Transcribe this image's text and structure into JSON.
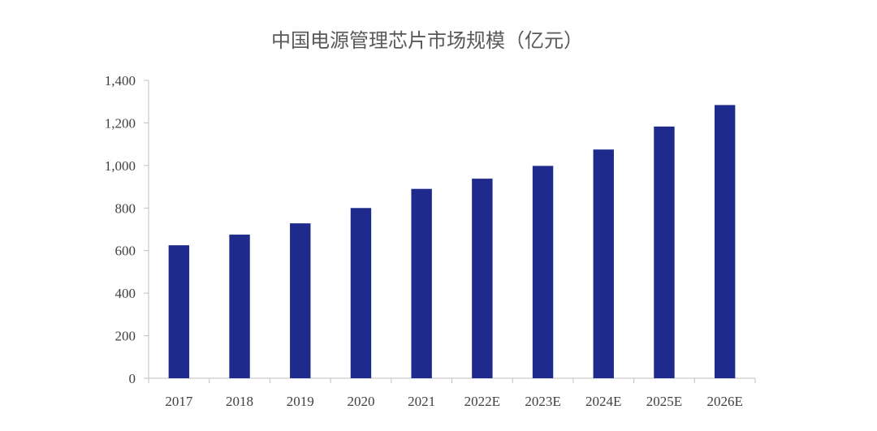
{
  "chart_data": {
    "type": "bar",
    "title": "中国电源管理芯片市场规模（亿元）",
    "xlabel": "",
    "ylabel": "",
    "categories": [
      "2017",
      "2018",
      "2019",
      "2020",
      "2021",
      "2022E",
      "2023E",
      "2024E",
      "2025E",
      "2026E"
    ],
    "values": [
      625,
      675,
      728,
      800,
      890,
      938,
      998,
      1075,
      1183,
      1284
    ],
    "ylim": [
      0,
      1400
    ],
    "yticks": [
      0,
      200,
      400,
      600,
      800,
      1000,
      1200,
      1400
    ],
    "ytick_labels": [
      "0",
      "200",
      "400",
      "600",
      "800",
      "1,000",
      "1,200",
      "1,400"
    ],
    "bar_color": "#1f2b8c",
    "axis_color": "#bfbfbf",
    "grid": false,
    "legend": "none"
  }
}
